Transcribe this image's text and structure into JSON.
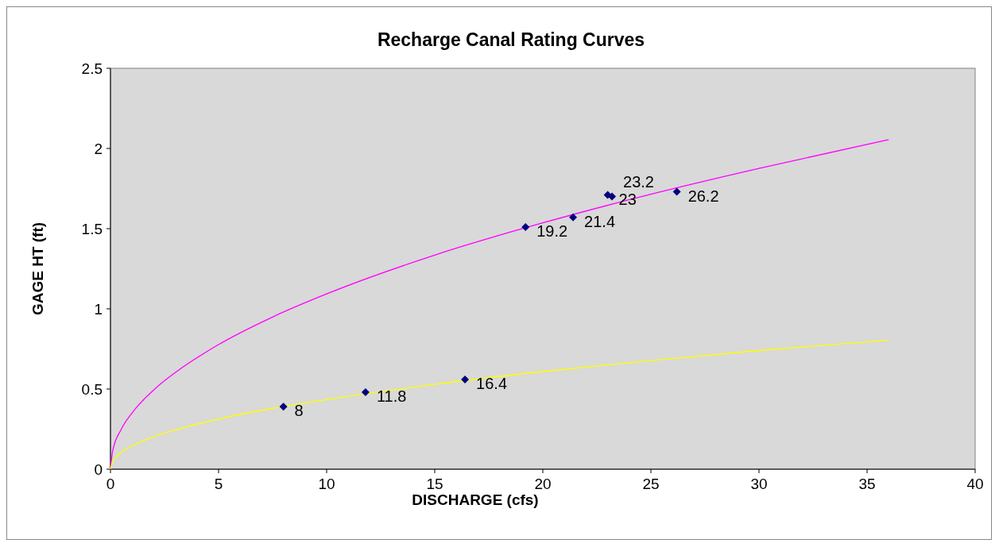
{
  "chart_data": {
    "type": "scatter",
    "title": "Recharge Canal Rating Curves",
    "xlabel": "DISCHARGE (cfs)",
    "ylabel": "GAGE HT (ft)",
    "xlim": [
      0,
      40
    ],
    "xticks": [
      0,
      5,
      10,
      15,
      20,
      25,
      30,
      35,
      40
    ],
    "ylim": [
      0,
      2.5
    ],
    "yticks": [
      0,
      0.5,
      1,
      1.5,
      2,
      2.5
    ],
    "grid": false,
    "series": [
      {
        "type": "line",
        "color": "#ff00ff",
        "marker": "none",
        "x": [
          0,
          0.1,
          0.5,
          1,
          2,
          3,
          5,
          7.5,
          10,
          15,
          20,
          25,
          30,
          36
        ],
        "values": [
          0,
          0.113,
          0.249,
          0.351,
          0.494,
          0.603,
          0.777,
          0.949,
          1.093,
          1.335,
          1.536,
          1.715,
          1.876,
          2.055
        ]
      },
      {
        "type": "line",
        "color": "#ffff00",
        "marker": "none",
        "x": [
          0,
          0.1,
          0.5,
          1,
          2,
          3,
          5,
          7.5,
          10,
          15,
          20,
          25,
          30,
          36
        ],
        "values": [
          0,
          0.048,
          0.104,
          0.145,
          0.202,
          0.245,
          0.313,
          0.38,
          0.434,
          0.529,
          0.609,
          0.678,
          0.74,
          0.805
        ]
      },
      {
        "color": "#000080",
        "marker": "diamond",
        "x": [
          8,
          11.8,
          16.4,
          19.2,
          21.4,
          23,
          23.2,
          26.2
        ],
        "values": [
          0.39,
          0.48,
          0.56,
          1.51,
          1.57,
          1.71,
          1.7,
          1.73
        ]
      }
    ],
    "annotations": [
      {
        "text": "8",
        "x": 8,
        "y": 0.39
      },
      {
        "text": "11.8",
        "x": 11.8,
        "y": 0.48
      },
      {
        "text": "16.4",
        "x": 16.4,
        "y": 0.56
      },
      {
        "text": "19.2",
        "x": 19.2,
        "y": 1.51
      },
      {
        "text": "21.4",
        "x": 21.4,
        "y": 1.57
      },
      {
        "text": "23",
        "x": 23,
        "y": 1.71
      },
      {
        "text": "23.2",
        "x": 23.2,
        "y": 1.7
      },
      {
        "text": "26.2",
        "x": 26.2,
        "y": 1.73
      }
    ]
  }
}
